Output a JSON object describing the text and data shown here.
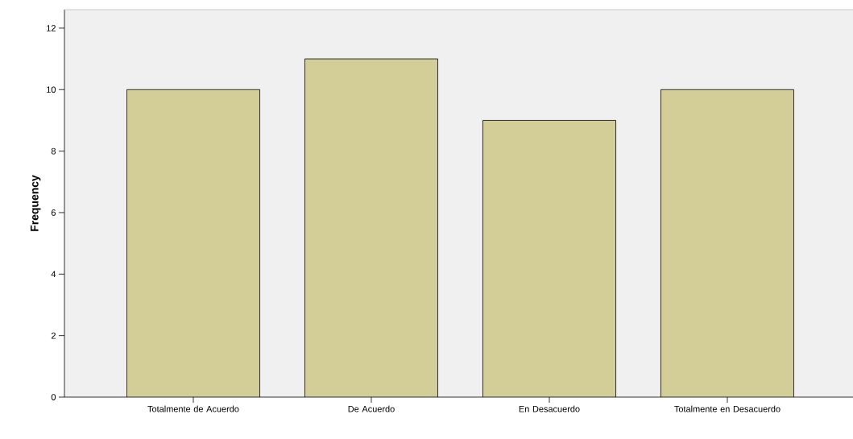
{
  "chart_data": {
    "type": "bar",
    "ylabel": "Frequency",
    "categories": [
      "Totalmente de Acuerdo",
      "De Acuerdo",
      "En Desacuerdo",
      "Totalmente en Desacuerdo"
    ],
    "values": [
      10,
      11,
      9,
      10
    ],
    "color": "#d3ce97",
    "ylim": [
      0,
      12.6
    ],
    "yticks": [
      0,
      2,
      4,
      6,
      8,
      10,
      12
    ],
    "grid": false
  }
}
